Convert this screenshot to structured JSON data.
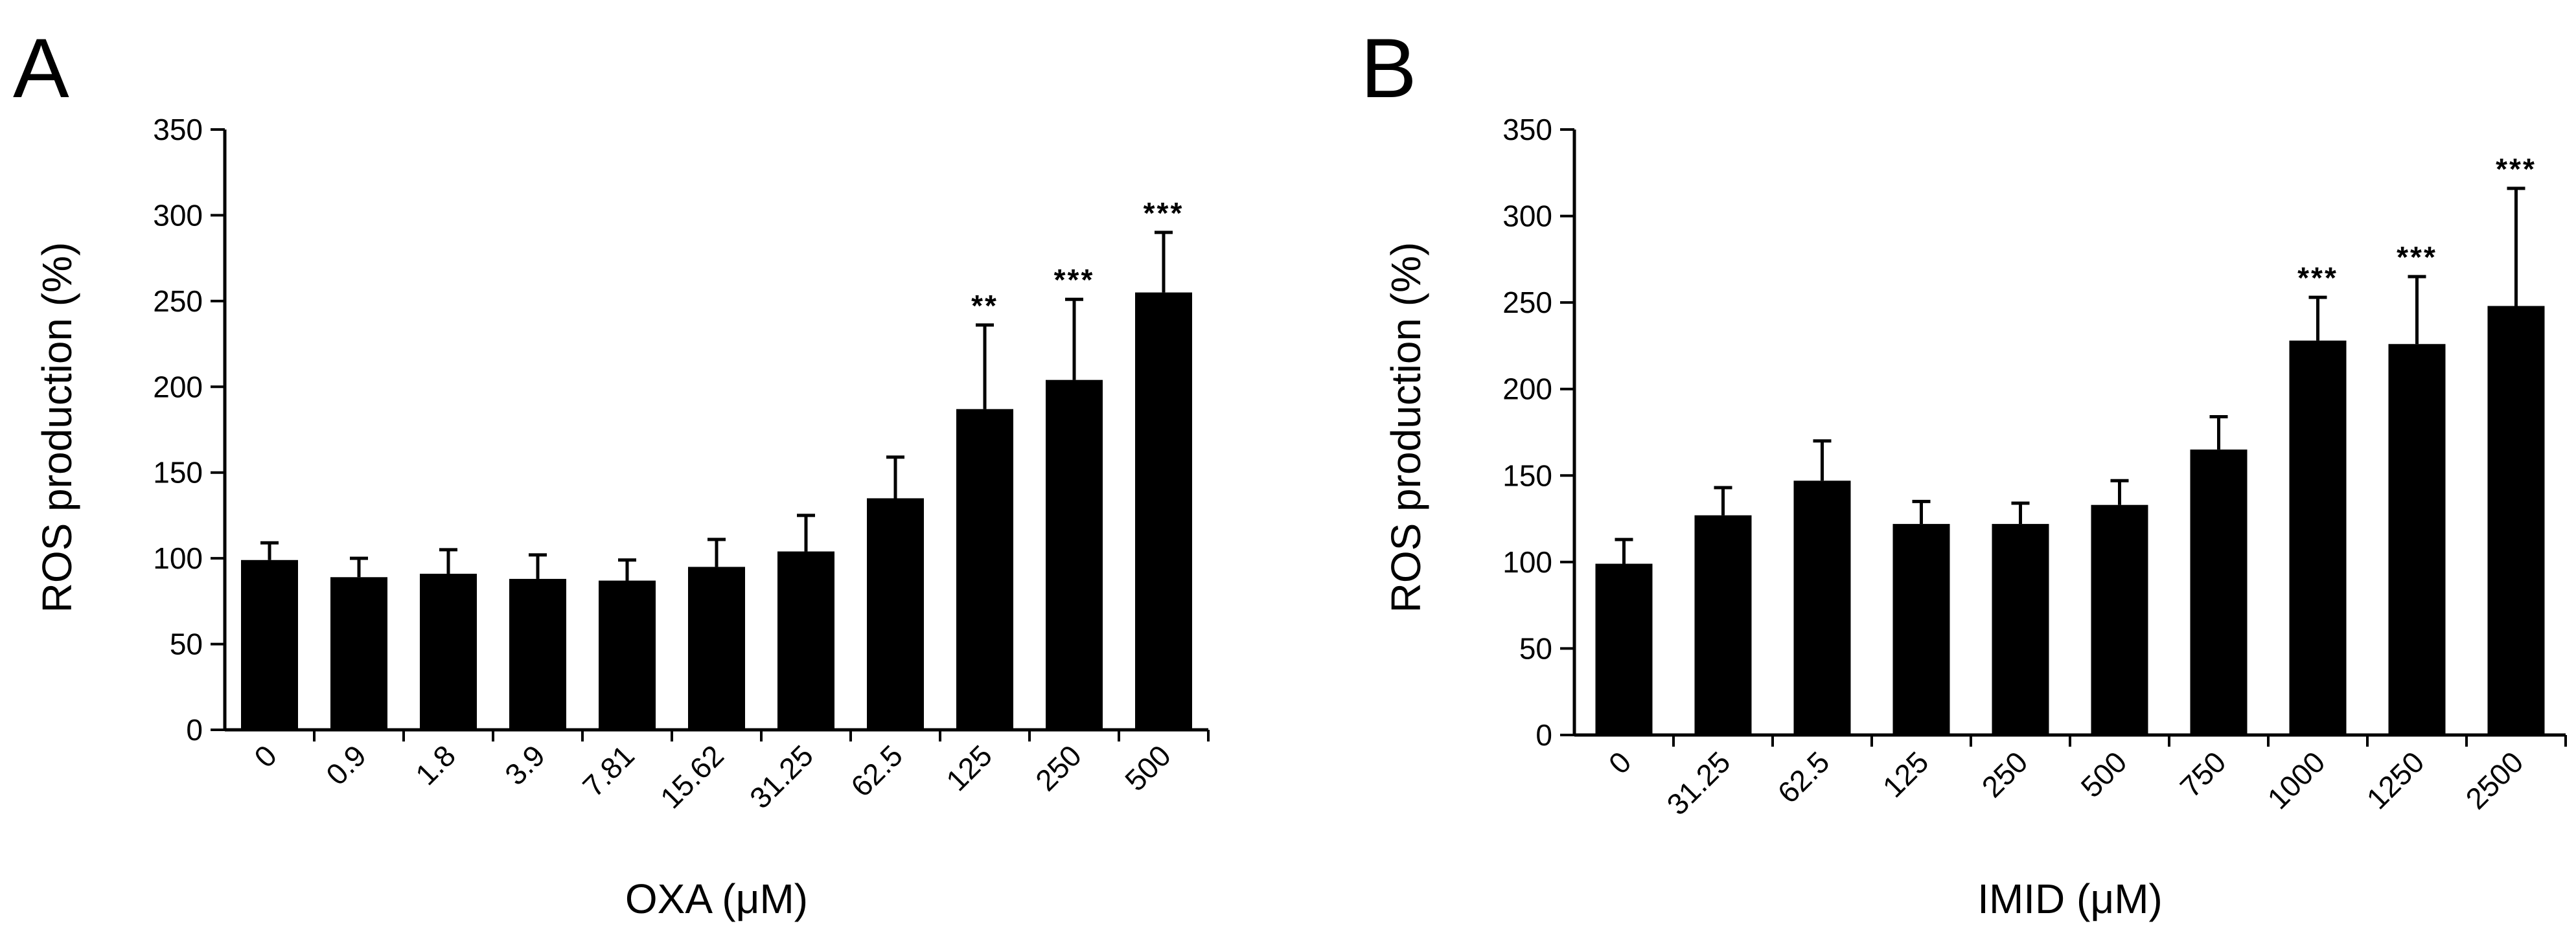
{
  "figure": {
    "background": "#ffffff",
    "bar_color": "#000000"
  },
  "chart_data": [
    {
      "panel": "A",
      "type": "bar",
      "xlabel": "OXA (μM)",
      "ylabel": "ROS production  (%)",
      "ylim": [
        0,
        350
      ],
      "yticks": [
        0,
        50,
        100,
        150,
        200,
        250,
        300,
        350
      ],
      "grid": false,
      "categories": [
        "0",
        "0.9",
        "1.8",
        "3.9",
        "7.81",
        "15.62",
        "31.25",
        "62.5",
        "125",
        "250",
        "500"
      ],
      "values": [
        99,
        89,
        91,
        88,
        87,
        95,
        104,
        135,
        187,
        204,
        255
      ],
      "errors": [
        10,
        11,
        14,
        14,
        12,
        16,
        21,
        24,
        49,
        47,
        35
      ],
      "significance": [
        "",
        "",
        "",
        "",
        "",
        "",
        "",
        "",
        "**",
        "***",
        "***"
      ]
    },
    {
      "panel": "B",
      "type": "bar",
      "xlabel": "IMID (μM)",
      "ylabel": "ROS production  (%)",
      "ylim": [
        0,
        350
      ],
      "yticks": [
        0,
        50,
        100,
        150,
        200,
        250,
        300,
        350
      ],
      "grid": false,
      "categories": [
        "0",
        "31.25",
        "62.5",
        "125",
        "250",
        "500",
        "750",
        "1000",
        "1250",
        "2500"
      ],
      "values": [
        99,
        127,
        147,
        122,
        122,
        133,
        165,
        228,
        226,
        248
      ],
      "errors": [
        14,
        16,
        23,
        13,
        12,
        14,
        19,
        25,
        39,
        68
      ],
      "significance": [
        "",
        "",
        "",
        "",
        "",
        "",
        "",
        "***",
        "***",
        "***"
      ]
    }
  ]
}
